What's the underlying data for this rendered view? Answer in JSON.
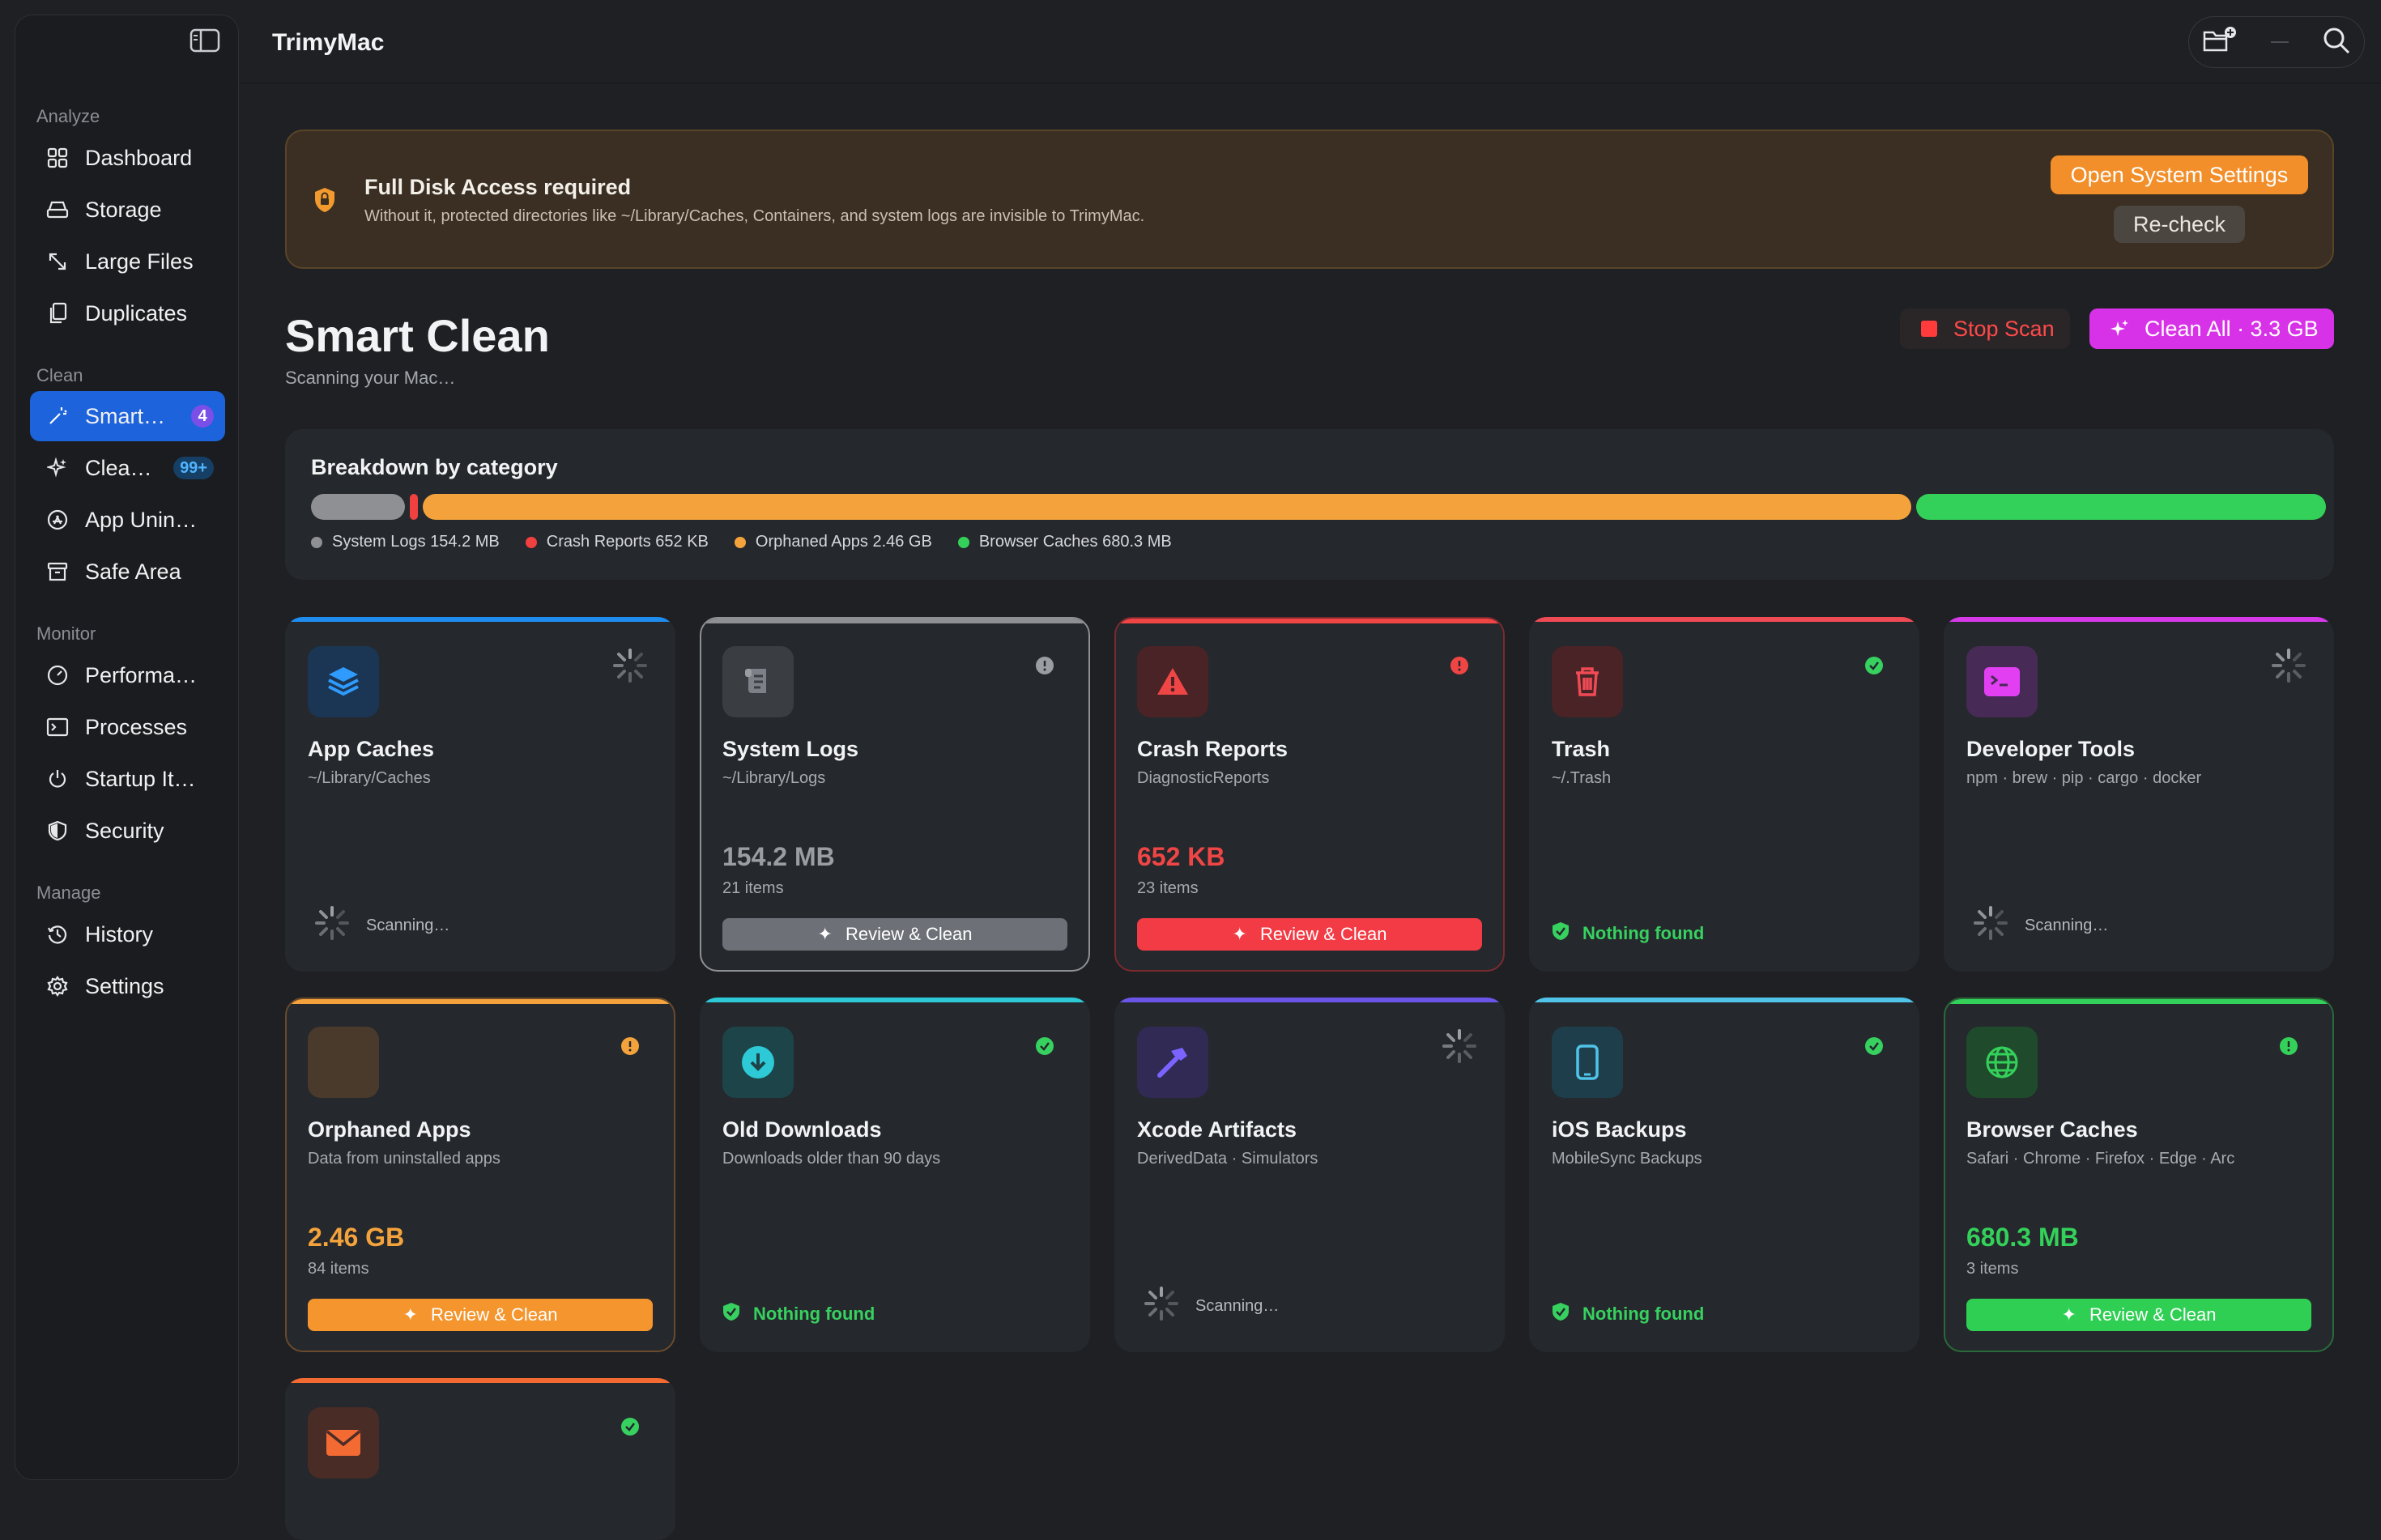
{
  "app": {
    "title": "TrimyMac"
  },
  "sidebar": {
    "sections": [
      {
        "label": "Analyze"
      },
      {
        "label": "Clean"
      },
      {
        "label": "Monitor"
      },
      {
        "label": "Manage"
      }
    ],
    "items": [
      {
        "label": "Dashboard",
        "icon": "grid-icon"
      },
      {
        "label": "Storage",
        "icon": "drive-icon"
      },
      {
        "label": "Large Files",
        "icon": "expand-arrows-icon"
      },
      {
        "label": "Duplicates",
        "icon": "duplicate-docs-icon"
      },
      {
        "label": "Smart…",
        "icon": "magic-wand-icon",
        "badge": "4",
        "active": true
      },
      {
        "label": "Clea…",
        "icon": "sparkle-icon",
        "badge": "99+"
      },
      {
        "label": "App Unin…",
        "icon": "app-store-icon"
      },
      {
        "label": "Safe Area",
        "icon": "archive-box-icon"
      },
      {
        "label": "Performa…",
        "icon": "gauge-icon"
      },
      {
        "label": "Processes",
        "icon": "terminal-window-icon"
      },
      {
        "label": "Startup It…",
        "icon": "power-icon"
      },
      {
        "label": "Security",
        "icon": "shield-icon"
      },
      {
        "label": "History",
        "icon": "clock-history-icon"
      },
      {
        "label": "Settings",
        "icon": "gear-icon"
      }
    ]
  },
  "banner": {
    "title": "Full Disk Access required",
    "description": "Without it, protected directories like ~/Library/Caches, Containers, and system logs are invisible to TrimyMac.",
    "primary_button": "Open System Settings",
    "secondary_button": "Re-check"
  },
  "header": {
    "title": "Smart Clean",
    "subtitle": "Scanning your Mac…",
    "stop_button": "Stop Scan",
    "clean_all_button": "Clean All · 3.3 GB"
  },
  "breakdown": {
    "title": "Breakdown by category",
    "categories": [
      {
        "label": "System Logs 154.2 MB",
        "color": "#8e9093",
        "fraction": 0.047
      },
      {
        "label": "Crash Reports 652 KB",
        "color": "#f04040",
        "fraction": 0.004
      },
      {
        "label": "Orphaned Apps 2.46 GB",
        "color": "#f4a33c",
        "fraction": 0.744
      },
      {
        "label": "Browser Caches 680.3 MB",
        "color": "#34d15a",
        "fraction": 0.205
      }
    ]
  },
  "cards": [
    {
      "name": "App Caches",
      "path": "~/Library/Caches",
      "state": "scanning",
      "scan_label": "Scanning…",
      "accent": "#1f8cf0"
    },
    {
      "name": "System Logs",
      "path": "~/Library/Logs",
      "state": "found",
      "size": "154.2 MB",
      "items": "21 items",
      "action": "Review & Clean",
      "accent": "#8e9093"
    },
    {
      "name": "Crash Reports",
      "path": "DiagnosticReports",
      "state": "found",
      "size": "652 KB",
      "items": "23 items",
      "action": "Review & Clean",
      "accent": "#f04545"
    },
    {
      "name": "Trash",
      "path": "~/.Trash",
      "state": "nothing",
      "nothing_label": "Nothing found",
      "accent": "#f04a55"
    },
    {
      "name": "Developer Tools",
      "path": "npm · brew · pip · cargo · docker",
      "state": "scanning",
      "scan_label": "Scanning…",
      "accent": "#d63ae8"
    },
    {
      "name": "Orphaned Apps",
      "path": "Data from uninstalled apps",
      "state": "found",
      "size": "2.46 GB",
      "items": "84 items",
      "action": "Review & Clean",
      "accent": "#f4a33c"
    },
    {
      "name": "Old Downloads",
      "path": "Downloads older than 90 days",
      "state": "nothing",
      "nothing_label": "Nothing found",
      "accent": "#2ec9d6"
    },
    {
      "name": "Xcode Artifacts",
      "path": "DerivedData · Simulators",
      "state": "scanning",
      "scan_label": "Scanning…",
      "accent": "#6a55e8"
    },
    {
      "name": "iOS Backups",
      "path": "MobileSync Backups",
      "state": "nothing",
      "nothing_label": "Nothing found",
      "accent": "#4fc3e8"
    },
    {
      "name": "Browser Caches",
      "path": "Safari · Chrome · Firefox · Edge · Arc",
      "state": "found",
      "size": "680.3 MB",
      "items": "3 items",
      "action": "Review & Clean",
      "accent": "#34d15a"
    },
    {
      "name": "",
      "path": "",
      "state": "partial",
      "accent": "#f36a33"
    }
  ]
}
